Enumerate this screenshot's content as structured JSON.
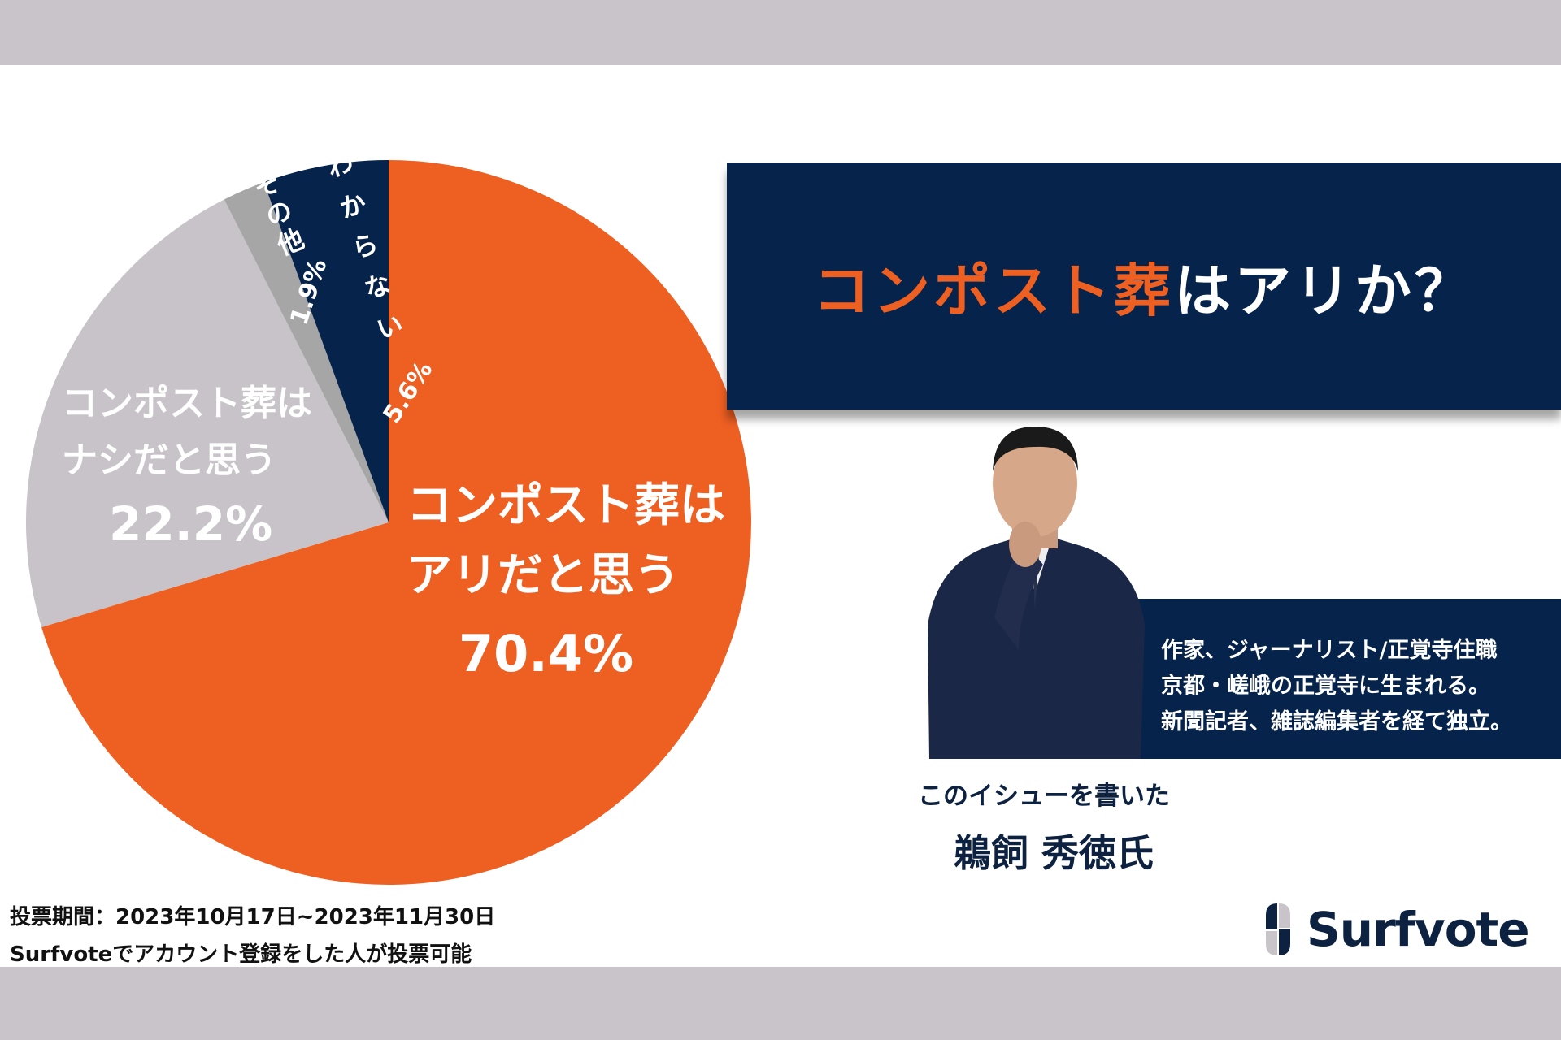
{
  "title": {
    "highlight": "コンポスト葬",
    "rest": "はアリか？",
    "highlight_color": "#ee5f22"
  },
  "chart_data": {
    "type": "pie",
    "start": "top",
    "direction": "clockwise",
    "slices": [
      {
        "label_line1": "コンポスト葬は",
        "label_line2": "アリだと思う",
        "value": 70.4,
        "value_label": "70.4%",
        "color": "#ee5f22"
      },
      {
        "label_line1": "コンポスト葬は",
        "label_line2": "ナシだと思う",
        "value": 22.2,
        "value_label": "22.2%",
        "color": "#c7c3c8"
      },
      {
        "label_line1": "その他",
        "value": 1.9,
        "value_label": "1.9%",
        "color": "#a6a6a6"
      },
      {
        "label_line1": "わからない",
        "value": 5.6,
        "value_label": "5.6%",
        "color": "#06234b"
      }
    ]
  },
  "author": {
    "bio": [
      "作家、ジャーナリスト/正覚寺住職",
      "京都・嵯峨の正覚寺に生まれる。",
      "新聞記者、雑誌編集者を経て独立。"
    ],
    "caption": "このイシューを書いた",
    "name": "鵜飼 秀徳氏"
  },
  "footer": {
    "period": "投票期間：2023年10月17日~2023年11月30日",
    "note": "Surfvoteでアカウント登録をした人が投票可能"
  },
  "logo": {
    "text": "Surfvote",
    "color": "#0d2240"
  }
}
